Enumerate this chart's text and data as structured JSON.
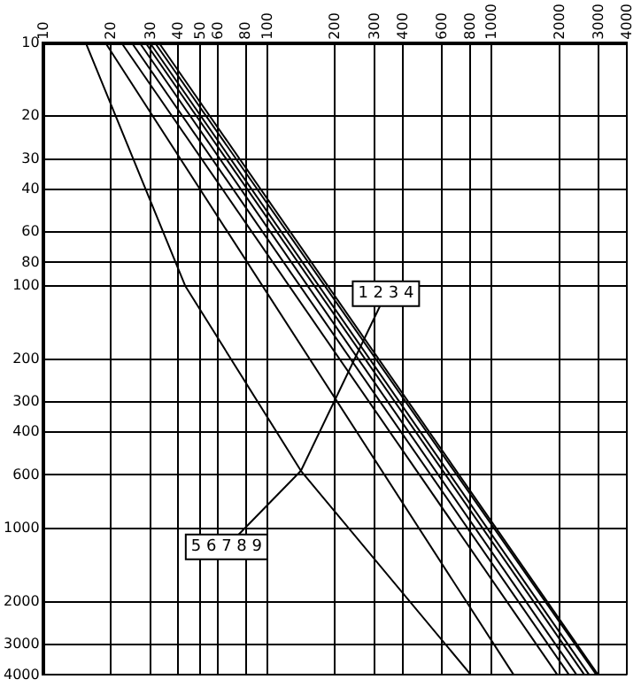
{
  "chart_data": {
    "type": "line",
    "log": "xy",
    "grid": true,
    "legend": false,
    "marker": "none",
    "line_style": "solid",
    "xlim": [
      10,
      4000
    ],
    "xticks": [
      10,
      20,
      30,
      40,
      50,
      60,
      80,
      100,
      200,
      300,
      400,
      600,
      800,
      1000,
      2000,
      3000,
      4000
    ],
    "ylim": [
      4000,
      10
    ],
    "yticks": [
      10,
      20,
      30,
      40,
      60,
      80,
      100,
      200,
      300,
      400,
      600,
      1000,
      2000,
      3000,
      4000
    ],
    "series": [
      {
        "color": "#000000",
        "x": [
          15.5,
          43,
          141,
          808
        ],
        "values": [
          10,
          100,
          577,
          4000
        ]
      },
      {
        "color": "#000000",
        "x": [
          19,
          1253
        ],
        "values": [
          10,
          4000
        ]
      },
      {
        "color": "#000000",
        "x": [
          22.4,
          1963
        ],
        "values": [
          10,
          4000
        ]
      },
      {
        "color": "#000000",
        "x": [
          24.9,
          2213
        ],
        "values": [
          10,
          4000
        ]
      },
      {
        "color": "#000000",
        "x": [
          27,
          2390
        ],
        "values": [
          10,
          4000
        ]
      },
      {
        "color": "#000000",
        "x": [
          28.7,
          2590
        ],
        "values": [
          10,
          4000
        ]
      },
      {
        "color": "#000000",
        "x": [
          30,
          2720
        ],
        "values": [
          10,
          4000
        ]
      },
      {
        "color": "#000000",
        "x": [
          31.6,
          2930
        ],
        "values": [
          10,
          4000
        ]
      },
      {
        "color": "#000000",
        "x": [
          32.9,
          2980
        ],
        "values": [
          10,
          4000
        ]
      }
    ],
    "annotations": [
      {
        "text": "1 2 3 4",
        "x": 141,
        "y": 577
      },
      {
        "text": "5 6 7 8 9",
        "x": 141,
        "y": 577
      }
    ]
  }
}
